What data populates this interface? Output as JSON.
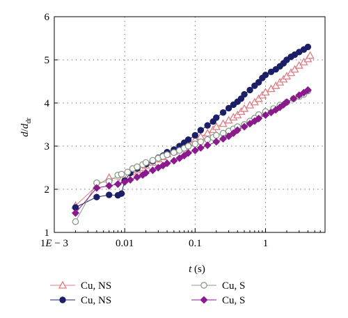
{
  "chart_data": {
    "type": "scatter",
    "xscale": "log",
    "xlim": [
      0.001,
      7
    ],
    "ylim": [
      1,
      6
    ],
    "grid": true,
    "legend_position": "bottom",
    "xlabel_var": "t",
    "xlabel_unit": " (s)",
    "ylabel_var": "d",
    "ylabel_sep": "/",
    "ylabel_denom": "d",
    "ylabel_sub": "dr",
    "x_ticks": [
      {
        "value": 0.001,
        "label_pre": "1",
        "label_var": "E",
        "label_post": " − 3"
      },
      {
        "value": 0.01,
        "label_pre": "0.01",
        "label_var": "",
        "label_post": ""
      },
      {
        "value": 0.1,
        "label_pre": "0.1",
        "label_var": "",
        "label_post": ""
      },
      {
        "value": 1,
        "label_pre": "1",
        "label_var": "",
        "label_post": ""
      }
    ],
    "y_ticks": [
      1,
      2,
      3,
      4,
      5,
      6
    ],
    "series": [
      {
        "name": "Cu, NS",
        "color": "#e07c84",
        "marker": "triangle-open",
        "points": [
          [
            0.002,
            1.62
          ],
          [
            0.004,
            2.08
          ],
          [
            0.006,
            2.27
          ],
          [
            0.009,
            2.22
          ],
          [
            0.011,
            2.3
          ],
          [
            0.013,
            2.4
          ],
          [
            0.015,
            2.45
          ],
          [
            0.018,
            2.5
          ],
          [
            0.02,
            2.55
          ],
          [
            0.025,
            2.62
          ],
          [
            0.03,
            2.7
          ],
          [
            0.035,
            2.75
          ],
          [
            0.04,
            2.82
          ],
          [
            0.05,
            2.88
          ],
          [
            0.06,
            2.95
          ],
          [
            0.07,
            3.0
          ],
          [
            0.08,
            3.07
          ],
          [
            0.1,
            3.15
          ],
          [
            0.12,
            3.22
          ],
          [
            0.15,
            3.3
          ],
          [
            0.18,
            3.38
          ],
          [
            0.2,
            3.45
          ],
          [
            0.25,
            3.52
          ],
          [
            0.3,
            3.6
          ],
          [
            0.35,
            3.67
          ],
          [
            0.4,
            3.72
          ],
          [
            0.45,
            3.8
          ],
          [
            0.5,
            3.87
          ],
          [
            0.6,
            3.95
          ],
          [
            0.7,
            4.02
          ],
          [
            0.8,
            4.1
          ],
          [
            0.9,
            4.18
          ],
          [
            1.0,
            4.25
          ],
          [
            1.2,
            4.33
          ],
          [
            1.4,
            4.4
          ],
          [
            1.6,
            4.48
          ],
          [
            1.8,
            4.55
          ],
          [
            2.0,
            4.62
          ],
          [
            2.3,
            4.7
          ],
          [
            2.6,
            4.78
          ],
          [
            3.0,
            4.87
          ],
          [
            3.5,
            4.95
          ],
          [
            4.0,
            5.02
          ],
          [
            4.3,
            5.1
          ]
        ]
      },
      {
        "name": "Cu, NS",
        "color": "#1c1f66",
        "marker": "circle-filled",
        "points": [
          [
            0.002,
            1.58
          ],
          [
            0.004,
            1.82
          ],
          [
            0.006,
            1.87
          ],
          [
            0.008,
            1.86
          ],
          [
            0.009,
            1.9
          ],
          [
            0.01,
            2.2
          ],
          [
            0.012,
            2.38
          ],
          [
            0.015,
            2.48
          ],
          [
            0.02,
            2.58
          ],
          [
            0.025,
            2.65
          ],
          [
            0.03,
            2.73
          ],
          [
            0.035,
            2.78
          ],
          [
            0.04,
            2.86
          ],
          [
            0.05,
            2.92
          ],
          [
            0.06,
            3.0
          ],
          [
            0.07,
            3.08
          ],
          [
            0.08,
            3.15
          ],
          [
            0.1,
            3.25
          ],
          [
            0.12,
            3.37
          ],
          [
            0.15,
            3.48
          ],
          [
            0.18,
            3.57
          ],
          [
            0.2,
            3.66
          ],
          [
            0.25,
            3.78
          ],
          [
            0.3,
            3.88
          ],
          [
            0.35,
            3.96
          ],
          [
            0.4,
            4.03
          ],
          [
            0.45,
            4.1
          ],
          [
            0.5,
            4.2
          ],
          [
            0.6,
            4.3
          ],
          [
            0.7,
            4.4
          ],
          [
            0.8,
            4.48
          ],
          [
            0.9,
            4.58
          ],
          [
            1.0,
            4.65
          ],
          [
            1.2,
            4.72
          ],
          [
            1.4,
            4.78
          ],
          [
            1.6,
            4.85
          ],
          [
            1.8,
            4.92
          ],
          [
            2.0,
            5.0
          ],
          [
            2.3,
            5.07
          ],
          [
            2.6,
            5.12
          ],
          [
            3.0,
            5.18
          ],
          [
            3.5,
            5.24
          ],
          [
            4.0,
            5.3
          ]
        ]
      },
      {
        "name": "Cu, S",
        "color": "#8a9a8a",
        "marker": "circle-open",
        "points": [
          [
            0.002,
            1.25
          ],
          [
            0.004,
            2.15
          ],
          [
            0.006,
            2.18
          ],
          [
            0.008,
            2.33
          ],
          [
            0.009,
            2.35
          ],
          [
            0.011,
            2.4
          ],
          [
            0.013,
            2.48
          ],
          [
            0.015,
            2.52
          ],
          [
            0.018,
            2.57
          ],
          [
            0.02,
            2.62
          ],
          [
            0.025,
            2.67
          ],
          [
            0.03,
            2.72
          ],
          [
            0.035,
            2.76
          ],
          [
            0.04,
            2.8
          ],
          [
            0.05,
            2.85
          ],
          [
            0.06,
            2.9
          ],
          [
            0.07,
            2.95
          ],
          [
            0.08,
            3.0
          ],
          [
            0.1,
            3.05
          ],
          [
            0.12,
            3.1
          ],
          [
            0.15,
            3.15
          ],
          [
            0.18,
            3.2
          ],
          [
            0.2,
            3.25
          ],
          [
            0.25,
            3.3
          ],
          [
            0.3,
            3.35
          ],
          [
            0.35,
            3.4
          ],
          [
            0.4,
            3.45
          ],
          [
            0.5,
            3.5
          ],
          [
            0.6,
            3.58
          ],
          [
            0.7,
            3.65
          ],
          [
            0.8,
            3.73
          ],
          [
            1.0,
            3.8
          ],
          [
            1.3,
            3.87
          ],
          [
            1.6,
            3.95
          ],
          [
            2.0,
            4.02
          ],
          [
            2.5,
            4.1
          ],
          [
            3.0,
            4.15
          ],
          [
            3.5,
            4.2
          ],
          [
            4.0,
            4.28
          ]
        ]
      },
      {
        "name": "Cu, S",
        "color": "#8b1a8c",
        "marker": "diamond-filled",
        "points": [
          [
            0.002,
            1.45
          ],
          [
            0.004,
            2.03
          ],
          [
            0.006,
            2.08
          ],
          [
            0.008,
            2.12
          ],
          [
            0.01,
            2.17
          ],
          [
            0.012,
            2.22
          ],
          [
            0.015,
            2.28
          ],
          [
            0.018,
            2.33
          ],
          [
            0.02,
            2.38
          ],
          [
            0.025,
            2.44
          ],
          [
            0.03,
            2.5
          ],
          [
            0.035,
            2.55
          ],
          [
            0.04,
            2.6
          ],
          [
            0.05,
            2.66
          ],
          [
            0.06,
            2.72
          ],
          [
            0.07,
            2.78
          ],
          [
            0.08,
            2.84
          ],
          [
            0.1,
            2.9
          ],
          [
            0.12,
            2.96
          ],
          [
            0.15,
            3.02
          ],
          [
            0.2,
            3.1
          ],
          [
            0.25,
            3.17
          ],
          [
            0.3,
            3.23
          ],
          [
            0.35,
            3.3
          ],
          [
            0.4,
            3.37
          ],
          [
            0.5,
            3.45
          ],
          [
            0.6,
            3.52
          ],
          [
            0.7,
            3.58
          ],
          [
            0.8,
            3.64
          ],
          [
            1.0,
            3.72
          ],
          [
            1.2,
            3.78
          ],
          [
            1.4,
            3.84
          ],
          [
            1.6,
            3.9
          ],
          [
            1.8,
            3.96
          ],
          [
            2.0,
            4.02
          ],
          [
            2.5,
            4.1
          ],
          [
            3.0,
            4.18
          ],
          [
            3.5,
            4.24
          ],
          [
            4.0,
            4.3
          ]
        ]
      }
    ]
  }
}
